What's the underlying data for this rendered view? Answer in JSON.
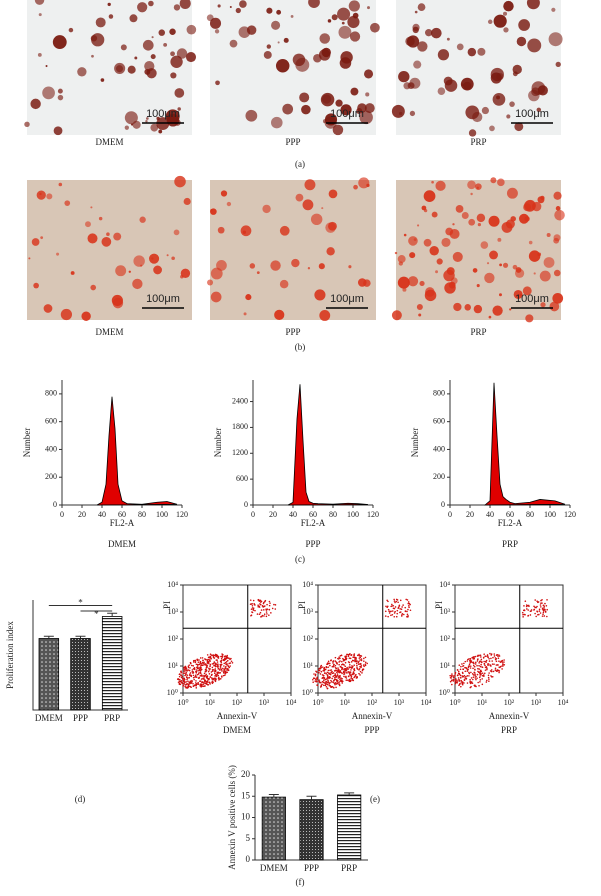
{
  "figure_labels": [
    "(a)",
    "(b)",
    "(c)",
    "(d)",
    "(e)",
    "(f)"
  ],
  "micrographs": {
    "captions": [
      "DMEM",
      "PPP",
      "PRP"
    ],
    "scale_bar": "100μm"
  },
  "flow_plots": {
    "xlabel": "Annexin-V",
    "ylabel": "PI",
    "captions": [
      "DMEM",
      "PPP",
      "PRP"
    ],
    "ticks": [
      {
        "value": 1,
        "label": "10⁰"
      },
      {
        "value": 10,
        "label": "10¹"
      },
      {
        "value": 100,
        "label": "10²"
      },
      {
        "value": 1000,
        "label": "10³"
      },
      {
        "value": 10000,
        "label": "10⁴"
      }
    ],
    "lim": [
      1,
      10000
    ],
    "log": true
  },
  "chart_data": [
    {
      "type": "histogram",
      "caption": "DMEM",
      "xlabel": "FL2-A",
      "ylabel": "Number",
      "color": "#e00000",
      "x": [
        35,
        40,
        44,
        47,
        50,
        53,
        56,
        60,
        65,
        80,
        95,
        105,
        115
      ],
      "values": [
        0,
        20,
        150,
        500,
        780,
        550,
        150,
        30,
        10,
        5,
        20,
        25,
        5
      ],
      "xlim": [
        0,
        120
      ],
      "xticks": [
        0,
        20,
        40,
        60,
        80,
        100,
        120
      ],
      "ylim": [
        0,
        900
      ],
      "yticks": [
        0,
        200,
        400,
        600,
        800
      ]
    },
    {
      "type": "histogram",
      "caption": "PPP",
      "xlabel": "FL2-A",
      "ylabel": "Number",
      "color": "#e00000",
      "x": [
        35,
        40,
        44,
        47,
        50,
        53,
        56,
        60,
        65,
        80,
        95,
        105,
        115
      ],
      "values": [
        0,
        60,
        2000,
        2800,
        1500,
        300,
        80,
        40,
        30,
        20,
        40,
        30,
        10
      ],
      "xlim": [
        0,
        120
      ],
      "xticks": [
        0,
        20,
        40,
        60,
        80,
        100,
        120
      ],
      "ylim": [
        0,
        2900
      ],
      "yticks": [
        0,
        600,
        1200,
        1800,
        2400
      ]
    },
    {
      "type": "histogram",
      "caption": "PRP",
      "xlabel": "FL2-A",
      "ylabel": "Number",
      "color": "#e00000",
      "x": [
        35,
        40,
        44,
        47,
        50,
        53,
        56,
        60,
        65,
        80,
        90,
        105,
        115
      ],
      "values": [
        0,
        30,
        880,
        500,
        150,
        60,
        40,
        20,
        10,
        20,
        40,
        30,
        5
      ],
      "xlim": [
        0,
        120
      ],
      "xticks": [
        0,
        20,
        40,
        60,
        80,
        100,
        120
      ],
      "ylim": [
        0,
        900
      ],
      "yticks": [
        0,
        200,
        400,
        600,
        800
      ]
    },
    {
      "type": "bar",
      "ylabel": "Proliferation index",
      "categories": [
        "DMEM",
        "PPP",
        "PRP"
      ],
      "values": [
        13,
        13,
        17
      ],
      "errors": [
        0.4,
        0.4,
        0.6
      ],
      "ylim": [
        0,
        20
      ],
      "annotations": [
        "*",
        "*"
      ]
    },
    {
      "type": "bar",
      "ylabel": "Annexin V positive cells (%)",
      "categories": [
        "DMEM",
        "PPP",
        "PRP"
      ],
      "values": [
        14.8,
        14.2,
        15.3
      ],
      "errors": [
        0.6,
        0.8,
        0.5
      ],
      "ylim": [
        0,
        20
      ],
      "yticks": [
        0,
        5,
        10,
        15,
        20
      ]
    }
  ]
}
